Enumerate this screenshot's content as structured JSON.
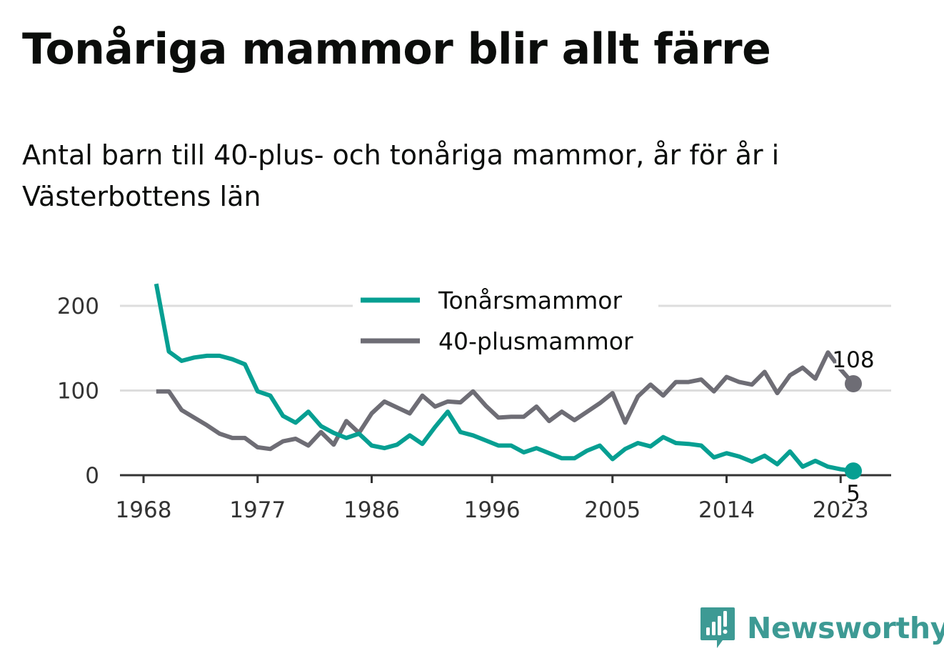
{
  "title": "Tonåriga mammor blir allt färre",
  "subtitle": "Antal barn till 40-plus- och tonåriga mammor, år för år i Västerbottens län",
  "brand": {
    "name": "Newsworthy"
  },
  "colors": {
    "teens": "#069f92",
    "forty_plus": "#6e6d75",
    "grid": "#dddddd",
    "axis": "#333333"
  },
  "chart_data": {
    "type": "line",
    "title": "",
    "xlabel": "",
    "ylabel": "",
    "x": [
      1969,
      1970,
      1971,
      1972,
      1973,
      1974,
      1975,
      1976,
      1977,
      1978,
      1979,
      1980,
      1981,
      1982,
      1983,
      1984,
      1985,
      1986,
      1987,
      1988,
      1989,
      1990,
      1991,
      1992,
      1993,
      1994,
      1995,
      1996,
      1997,
      1998,
      1999,
      2000,
      2001,
      2002,
      2003,
      2004,
      2005,
      2006,
      2007,
      2008,
      2009,
      2010,
      2011,
      2012,
      2013,
      2014,
      2015,
      2016,
      2017,
      2018,
      2019,
      2020,
      2021,
      2022,
      2023,
      2024
    ],
    "x_ticks": [
      "1968",
      "1977",
      "1986",
      "1996",
      "2005",
      "2014",
      "2023"
    ],
    "x_tick_values": [
      1968,
      1977,
      1986,
      1995.5,
      2005,
      2014,
      2023
    ],
    "xlim": [
      1968,
      2026
    ],
    "y_ticks": [
      "0",
      "100",
      "200"
    ],
    "y_tick_values": [
      0,
      100,
      200
    ],
    "ylim": [
      0,
      230
    ],
    "grid": true,
    "legend_position": "top-center",
    "series": [
      {
        "name": "Tonårsmammor",
        "color": "#069f92",
        "values": [
          226,
          146,
          135,
          139,
          141,
          141,
          137,
          131,
          99,
          94,
          70,
          62,
          75,
          58,
          50,
          44,
          49,
          35,
          32,
          36,
          47,
          37,
          57,
          75,
          51,
          47,
          41,
          35,
          35,
          27,
          32,
          26,
          20,
          20,
          29,
          35,
          19,
          31,
          38,
          34,
          45,
          38,
          37,
          35,
          21,
          26,
          22,
          16,
          23,
          13,
          28,
          10,
          17,
          10,
          7,
          5
        ],
        "end_label": "5"
      },
      {
        "name": "40-plusmammor",
        "color": "#6e6d75",
        "values": [
          99,
          99,
          77,
          68,
          59,
          49,
          44,
          44,
          33,
          31,
          40,
          43,
          35,
          51,
          36,
          64,
          50,
          73,
          87,
          80,
          73,
          94,
          81,
          87,
          86,
          99,
          82,
          68,
          69,
          69,
          81,
          64,
          75,
          65,
          75,
          85,
          97,
          62,
          93,
          107,
          94,
          110,
          110,
          113,
          99,
          116,
          110,
          107,
          122,
          97,
          118,
          127,
          114,
          145,
          125,
          108
        ],
        "end_label": "108"
      }
    ]
  }
}
